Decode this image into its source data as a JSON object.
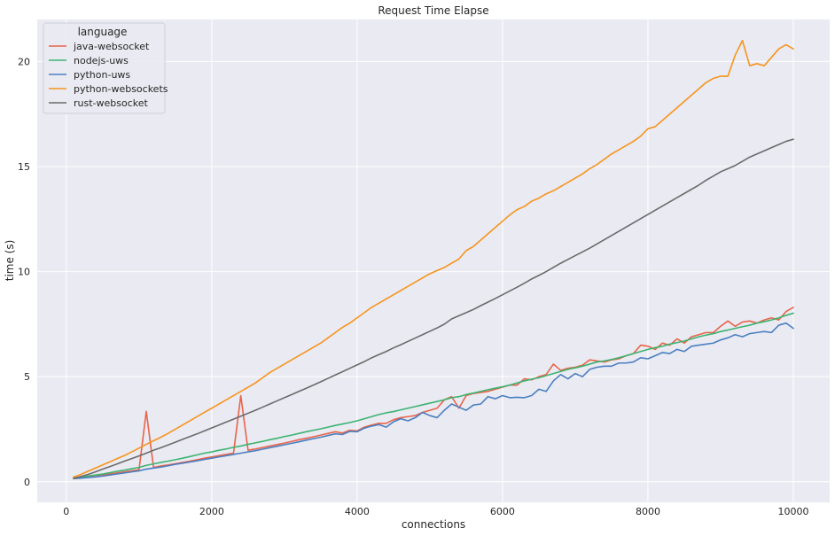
{
  "chart_data": {
    "type": "line",
    "title": "Request Time Elapse",
    "xlabel": "connections",
    "ylabel": "time (s)",
    "xlim": [
      -400,
      10500
    ],
    "ylim": [
      -0.98,
      22.0
    ],
    "xticks": [
      0,
      2000,
      4000,
      6000,
      8000,
      10000
    ],
    "yticks": [
      0,
      5,
      10,
      15,
      20
    ],
    "grid": true,
    "legend": {
      "title": "language",
      "placement": "top-left"
    },
    "x": [
      100,
      200,
      300,
      400,
      500,
      600,
      700,
      800,
      900,
      1000,
      1100,
      1200,
      1300,
      1400,
      1500,
      1600,
      1700,
      1800,
      1900,
      2000,
      2100,
      2200,
      2300,
      2400,
      2500,
      2600,
      2700,
      2800,
      2900,
      3000,
      3100,
      3200,
      3300,
      3400,
      3500,
      3600,
      3700,
      3800,
      3900,
      4000,
      4100,
      4200,
      4300,
      4400,
      4500,
      4600,
      4700,
      4800,
      4900,
      5000,
      5100,
      5200,
      5300,
      5400,
      5500,
      5600,
      5700,
      5800,
      5900,
      6000,
      6100,
      6200,
      6300,
      6400,
      6500,
      6600,
      6700,
      6800,
      6900,
      7000,
      7100,
      7200,
      7300,
      7400,
      7500,
      7600,
      7700,
      7800,
      7900,
      8000,
      8100,
      8200,
      8300,
      8400,
      8500,
      8600,
      8700,
      8800,
      8900,
      9000,
      9100,
      9200,
      9300,
      9400,
      9500,
      9600,
      9700,
      9800,
      9900,
      10000
    ],
    "series": [
      {
        "name": "java-websocket",
        "color": "#e8644a",
        "values": [
          0.18,
          0.2,
          0.25,
          0.3,
          0.33,
          0.37,
          0.42,
          0.47,
          0.52,
          0.57,
          3.35,
          0.68,
          0.75,
          0.8,
          0.86,
          0.92,
          0.98,
          1.05,
          1.12,
          1.18,
          1.24,
          1.3,
          1.36,
          4.1,
          1.5,
          1.56,
          1.63,
          1.7,
          1.77,
          1.84,
          1.92,
          2.0,
          2.07,
          2.14,
          2.22,
          2.3,
          2.38,
          2.32,
          2.45,
          2.42,
          2.6,
          2.7,
          2.78,
          2.78,
          2.95,
          3.05,
          3.1,
          3.15,
          3.3,
          3.4,
          3.5,
          3.9,
          4.05,
          3.5,
          4.1,
          4.2,
          4.25,
          4.3,
          4.4,
          4.5,
          4.6,
          4.6,
          4.9,
          4.85,
          5.0,
          5.1,
          5.6,
          5.3,
          5.4,
          5.45,
          5.55,
          5.8,
          5.75,
          5.7,
          5.8,
          5.85,
          6.0,
          6.1,
          6.5,
          6.45,
          6.3,
          6.6,
          6.5,
          6.8,
          6.6,
          6.9,
          7.0,
          7.1,
          7.1,
          7.4,
          7.65,
          7.4,
          7.6,
          7.65,
          7.55,
          7.7,
          7.8,
          7.7,
          8.1,
          8.3
        ]
      },
      {
        "name": "nodejs-uws",
        "color": "#3cb371",
        "values": [
          0.2,
          0.2,
          0.27,
          0.32,
          0.37,
          0.43,
          0.5,
          0.55,
          0.62,
          0.68,
          0.78,
          0.85,
          0.92,
          0.98,
          1.05,
          1.12,
          1.2,
          1.28,
          1.36,
          1.42,
          1.5,
          1.56,
          1.64,
          1.7,
          1.78,
          1.85,
          1.92,
          2.0,
          2.07,
          2.15,
          2.22,
          2.3,
          2.38,
          2.45,
          2.52,
          2.6,
          2.68,
          2.75,
          2.82,
          2.9,
          3.0,
          3.1,
          3.2,
          3.28,
          3.34,
          3.42,
          3.5,
          3.58,
          3.66,
          3.74,
          3.82,
          3.9,
          4.0,
          4.05,
          4.15,
          4.22,
          4.3,
          4.38,
          4.45,
          4.52,
          4.6,
          4.7,
          4.8,
          4.88,
          4.95,
          5.05,
          5.15,
          5.25,
          5.35,
          5.42,
          5.5,
          5.6,
          5.7,
          5.75,
          5.82,
          5.9,
          6.0,
          6.1,
          6.2,
          6.3,
          6.38,
          6.45,
          6.55,
          6.62,
          6.7,
          6.8,
          6.9,
          6.98,
          7.05,
          7.15,
          7.22,
          7.3,
          7.38,
          7.45,
          7.55,
          7.62,
          7.7,
          7.8,
          7.92,
          8.02
        ]
      },
      {
        "name": "python-uws",
        "color": "#4a7fc1",
        "values": [
          0.15,
          0.17,
          0.2,
          0.23,
          0.27,
          0.32,
          0.37,
          0.42,
          0.47,
          0.52,
          0.6,
          0.65,
          0.7,
          0.76,
          0.83,
          0.88,
          0.94,
          1.0,
          1.06,
          1.12,
          1.18,
          1.24,
          1.3,
          1.36,
          1.42,
          1.48,
          1.55,
          1.62,
          1.69,
          1.76,
          1.83,
          1.9,
          1.98,
          2.05,
          2.12,
          2.2,
          2.28,
          2.25,
          2.4,
          2.38,
          2.55,
          2.65,
          2.72,
          2.6,
          2.85,
          3.0,
          2.9,
          3.05,
          3.3,
          3.15,
          3.05,
          3.4,
          3.7,
          3.55,
          3.4,
          3.65,
          3.7,
          4.05,
          3.95,
          4.1,
          4.0,
          4.02,
          4.0,
          4.1,
          4.4,
          4.3,
          4.8,
          5.1,
          4.9,
          5.15,
          5.0,
          5.35,
          5.45,
          5.5,
          5.5,
          5.65,
          5.65,
          5.7,
          5.9,
          5.85,
          6.0,
          6.15,
          6.1,
          6.3,
          6.2,
          6.45,
          6.5,
          6.55,
          6.6,
          6.75,
          6.85,
          7.0,
          6.9,
          7.05,
          7.1,
          7.15,
          7.1,
          7.45,
          7.55,
          7.3
        ]
      },
      {
        "name": "python-websockets",
        "color": "#f7941e",
        "values": [
          0.22,
          0.35,
          0.5,
          0.65,
          0.8,
          0.95,
          1.1,
          1.25,
          1.42,
          1.6,
          1.78,
          1.95,
          2.12,
          2.3,
          2.5,
          2.7,
          2.9,
          3.1,
          3.3,
          3.5,
          3.7,
          3.9,
          4.1,
          4.3,
          4.5,
          4.7,
          4.95,
          5.2,
          5.4,
          5.6,
          5.8,
          6.0,
          6.2,
          6.4,
          6.6,
          6.85,
          7.1,
          7.35,
          7.55,
          7.8,
          8.05,
          8.3,
          8.5,
          8.7,
          8.9,
          9.1,
          9.3,
          9.5,
          9.7,
          9.9,
          10.05,
          10.2,
          10.4,
          10.6,
          11.0,
          11.2,
          11.5,
          11.8,
          12.1,
          12.4,
          12.7,
          12.95,
          13.1,
          13.35,
          13.5,
          13.7,
          13.85,
          14.05,
          14.25,
          14.45,
          14.65,
          14.9,
          15.1,
          15.35,
          15.6,
          15.8,
          16.0,
          16.2,
          16.45,
          16.8,
          16.9,
          17.2,
          17.5,
          17.8,
          18.1,
          18.4,
          18.7,
          19.0,
          19.2,
          19.3,
          19.3,
          20.3,
          21.0,
          19.8,
          19.9,
          19.8,
          20.2,
          20.6,
          20.8,
          20.6
        ]
      },
      {
        "name": "rust-websocket",
        "color": "#6b6b6b",
        "values": [
          0.15,
          0.25,
          0.35,
          0.47,
          0.6,
          0.72,
          0.85,
          0.98,
          1.1,
          1.23,
          1.36,
          1.5,
          1.62,
          1.75,
          1.88,
          2.02,
          2.15,
          2.28,
          2.42,
          2.56,
          2.7,
          2.84,
          2.98,
          3.12,
          3.26,
          3.4,
          3.55,
          3.7,
          3.85,
          4.0,
          4.15,
          4.3,
          4.45,
          4.6,
          4.76,
          4.92,
          5.08,
          5.24,
          5.4,
          5.56,
          5.72,
          5.9,
          6.05,
          6.2,
          6.37,
          6.52,
          6.68,
          6.84,
          7.0,
          7.16,
          7.32,
          7.5,
          7.75,
          7.9,
          8.05,
          8.2,
          8.38,
          8.55,
          8.72,
          8.9,
          9.08,
          9.26,
          9.45,
          9.65,
          9.82,
          10.0,
          10.2,
          10.4,
          10.58,
          10.76,
          10.94,
          11.12,
          11.32,
          11.52,
          11.72,
          11.92,
          12.12,
          12.32,
          12.52,
          12.72,
          12.92,
          13.12,
          13.32,
          13.52,
          13.72,
          13.92,
          14.12,
          14.35,
          14.55,
          14.75,
          14.9,
          15.05,
          15.25,
          15.45,
          15.6,
          15.75,
          15.9,
          16.05,
          16.2,
          16.3
        ]
      }
    ]
  }
}
